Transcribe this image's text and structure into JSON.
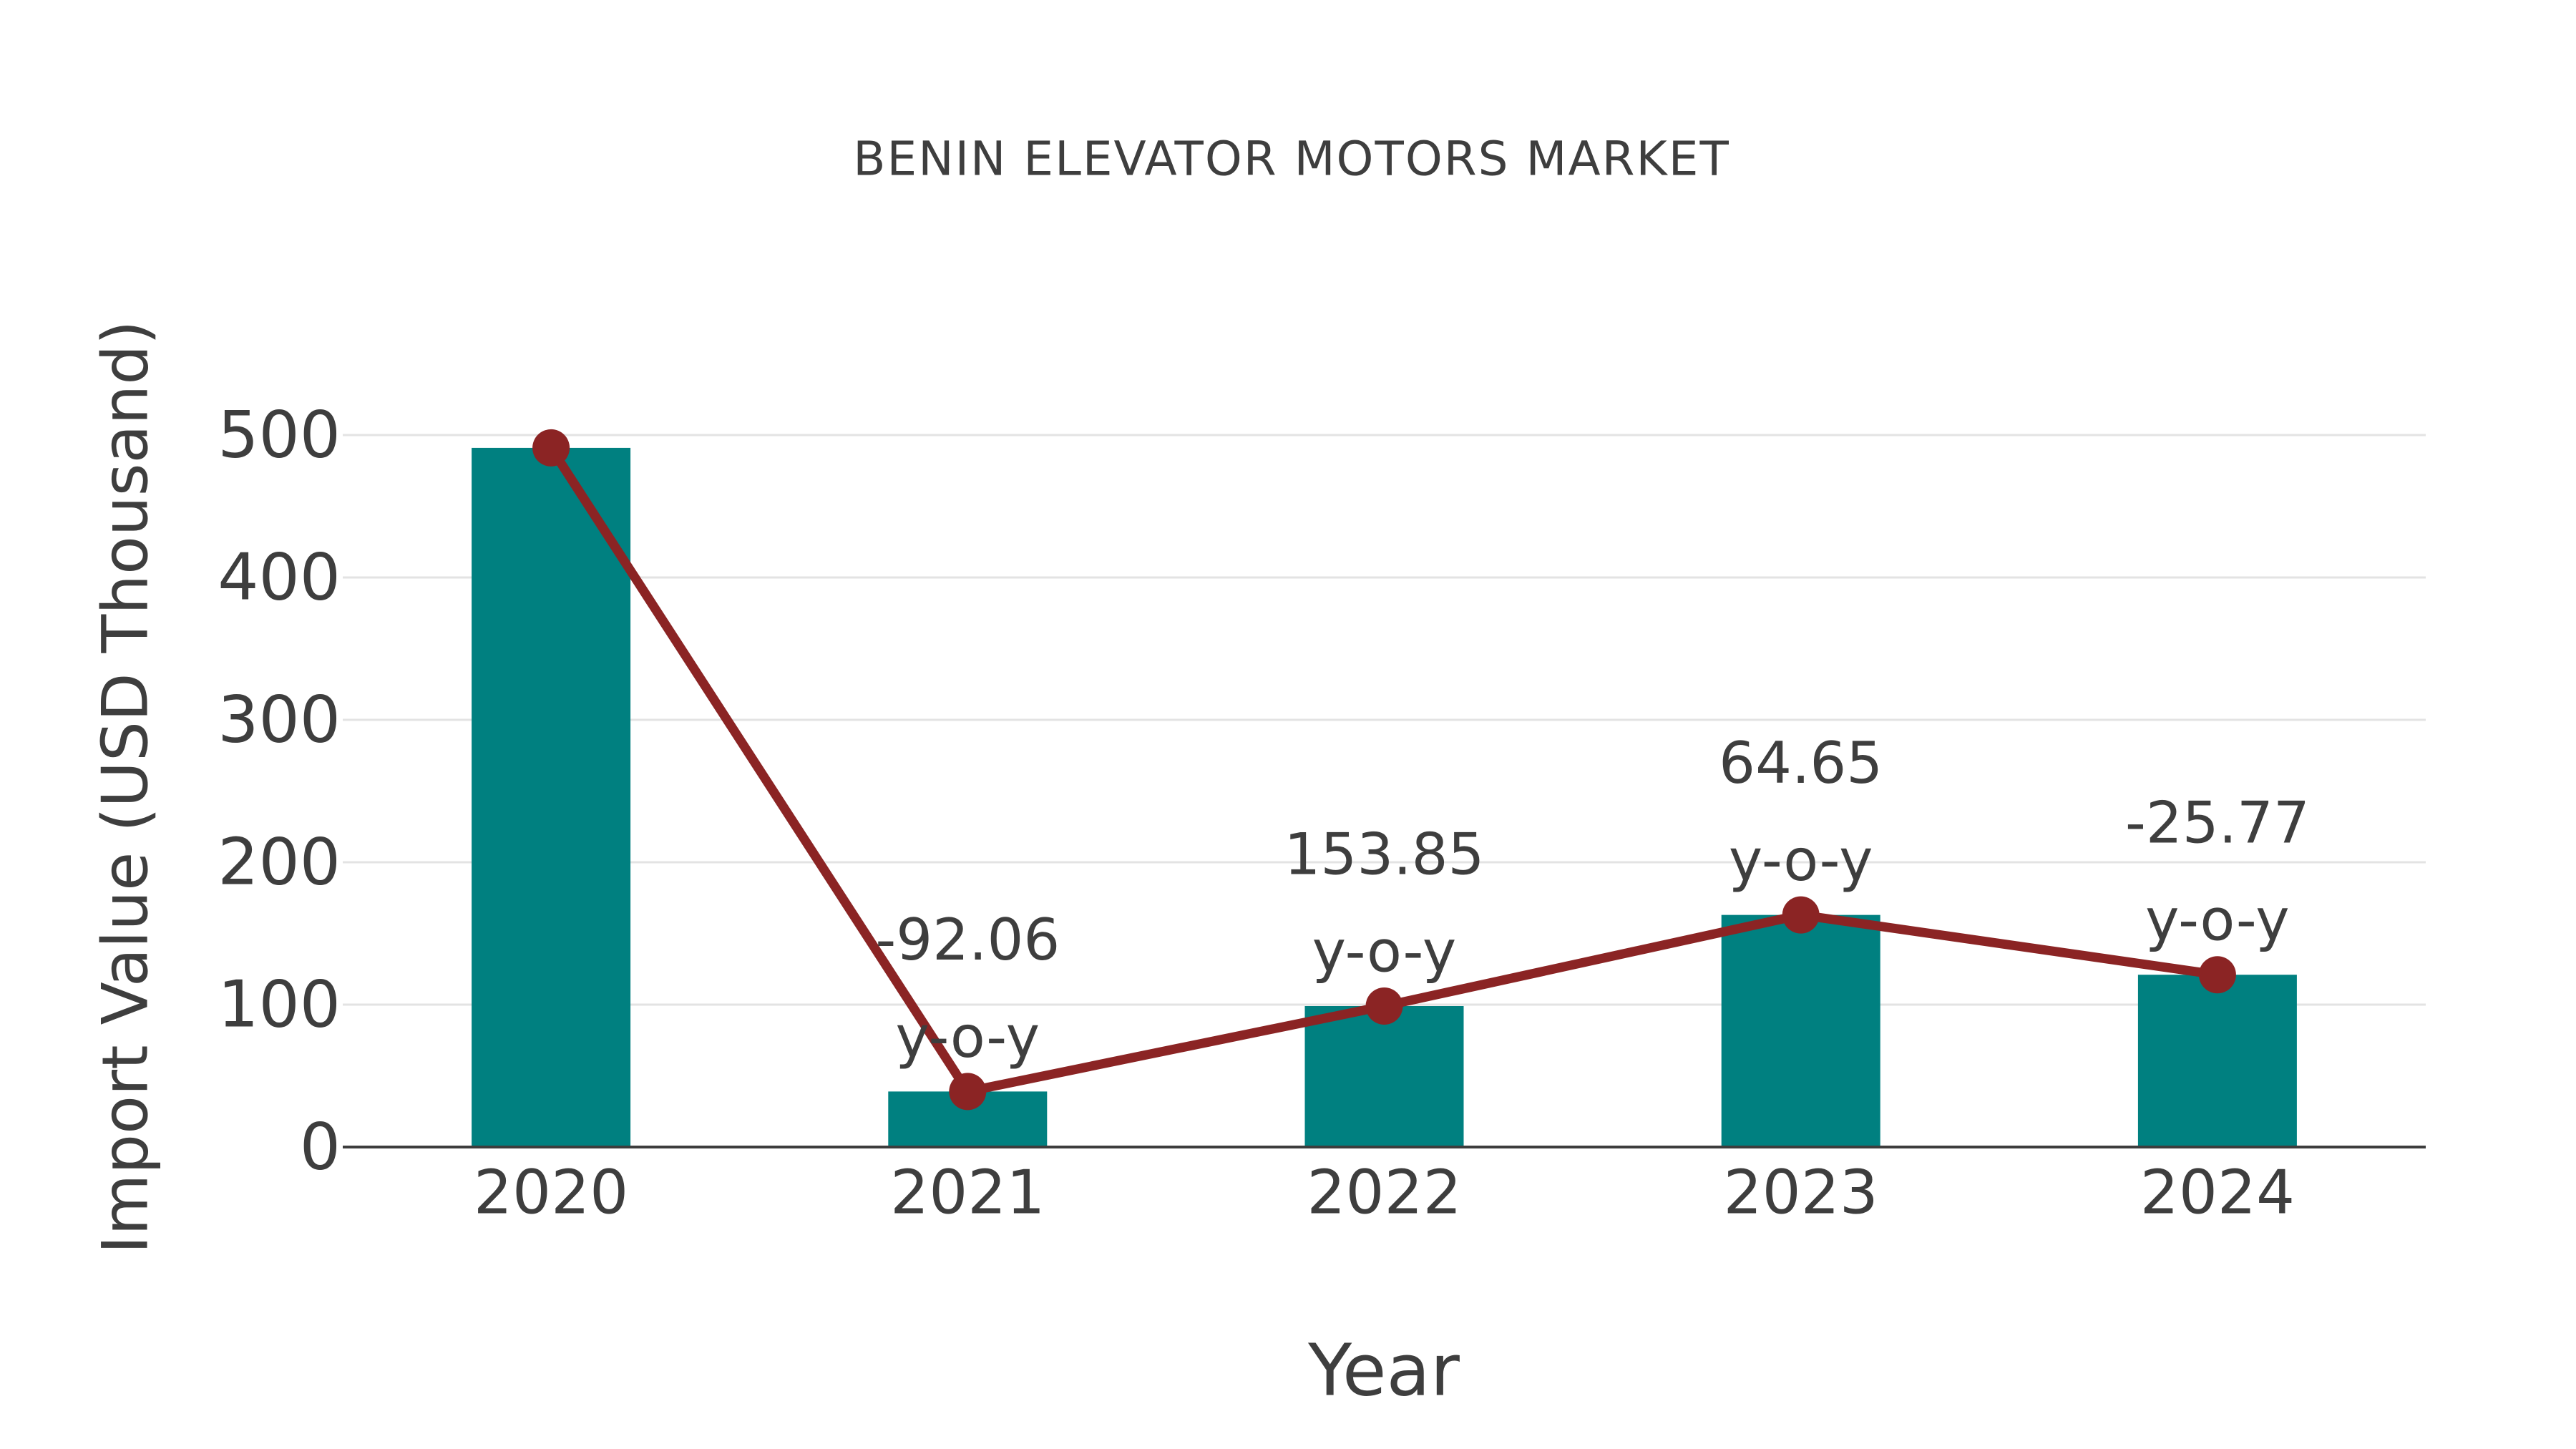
{
  "chart_data": {
    "type": "bar",
    "title": "BENIN ELEVATOR MOTORS MARKET",
    "xlabel": "Year",
    "ylabel": "Import Value (USD Thousand)",
    "categories": [
      "2020",
      "2021",
      "2022",
      "2023",
      "2024"
    ],
    "series": [
      {
        "name": "Import Value (USD Thousand) bars",
        "type": "bar",
        "color": "#008080",
        "values": [
          491,
          39,
          99,
          163,
          121
        ]
      },
      {
        "name": "Import Value trend line",
        "type": "line",
        "color": "#8b2424",
        "values": [
          491,
          39,
          99,
          163,
          121
        ]
      }
    ],
    "annotations": [
      {
        "category": "2021",
        "value_label": "-92.06",
        "suffix_label": "y-o-y"
      },
      {
        "category": "2022",
        "value_label": "153.85",
        "suffix_label": "y-o-y"
      },
      {
        "category": "2023",
        "value_label": "64.65",
        "suffix_label": "y-o-y"
      },
      {
        "category": "2024",
        "value_label": "-25.77",
        "suffix_label": "y-o-y"
      }
    ],
    "ylim": [
      0,
      525
    ],
    "yticks": [
      0,
      100,
      200,
      300,
      400,
      500
    ],
    "grid": true,
    "legend": false,
    "colors": {
      "bar": "#008080",
      "line": "#8b2424",
      "grid": "#e3e3e3",
      "axis": "#3d3d3d",
      "text": "#3e3e3e"
    }
  }
}
